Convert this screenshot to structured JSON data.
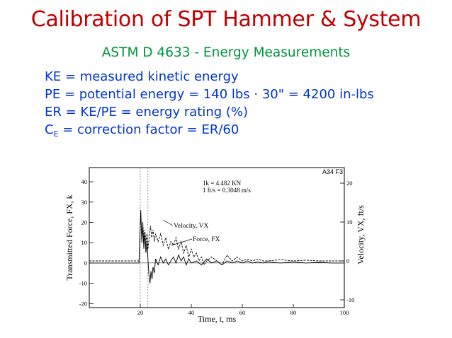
{
  "slide": {
    "title": "Calibration of SPT Hammer & System",
    "subtitle": "ASTM D 4633 - Energy Measurements",
    "definitions": [
      "KE = measured kinetic energy",
      "PE  = potential energy = 140 lbs · 30\" = 4200 in-lbs",
      "ER = KE/PE = energy rating  (%)"
    ],
    "ce": {
      "symbol": "C",
      "subscript": "E",
      "text": " = correction factor = ER/60"
    }
  },
  "chart_data": {
    "type": "line",
    "figure_id": "A34 F3",
    "conversions": [
      "1k = 4.482 KN",
      "1 ft/s = 0.3048 m/s"
    ],
    "xlabel": "Time, t, ms",
    "ylabel_left": "Transmitted Force, FX, k",
    "ylabel_right": "Velocity, VX, ft/s",
    "xlim": [
      0,
      100
    ],
    "ylim_left": [
      -22,
      47
    ],
    "ylim_right": [
      -12,
      24
    ],
    "x_ticks": [
      "20",
      "40",
      "60",
      "80",
      "100"
    ],
    "y_left_ticks": [
      "40",
      "30",
      "20",
      "10",
      "0",
      "-10",
      "-20"
    ],
    "y_right_ticks": [
      "20",
      "10",
      "0",
      "-10"
    ],
    "annotations": [
      "Velocity, VX",
      "Force, FX"
    ],
    "series": [
      {
        "name": "Force, FX",
        "axis": "left",
        "x": [
          0,
          19.5,
          20.2,
          20.6,
          21.0,
          21.4,
          21.8,
          22.2,
          22.6,
          23.0,
          23.4,
          23.8,
          24.2,
          24.6,
          25.0,
          25.5,
          26,
          27,
          28,
          29,
          30,
          31,
          32,
          33,
          34,
          35,
          36,
          37,
          38,
          39,
          40,
          42,
          44,
          46,
          48,
          50,
          52,
          54,
          56,
          58,
          60,
          62,
          64,
          66,
          68,
          70,
          75,
          80,
          85,
          90,
          95,
          100
        ],
        "y": [
          0,
          0,
          26,
          10,
          18,
          7,
          15,
          5,
          10,
          2,
          -6,
          -10,
          -4,
          -8,
          -2,
          -5,
          2,
          -1,
          3,
          0,
          2,
          -1,
          1,
          3,
          0,
          4,
          1,
          3,
          -1,
          2,
          0,
          1,
          -1,
          2,
          0,
          1,
          -1,
          1,
          0,
          1,
          0,
          1,
          0,
          0.5,
          0,
          0.5,
          0,
          0.5,
          0,
          0.3,
          0,
          0
        ]
      },
      {
        "name": "Velocity, VX",
        "axis": "right",
        "x": [
          0,
          19.5,
          20.2,
          20.6,
          21.0,
          21.4,
          21.8,
          22.2,
          22.6,
          23.0,
          23.5,
          24,
          24.5,
          25,
          25.5,
          26,
          27,
          28,
          29,
          30,
          31,
          32,
          33,
          34,
          35,
          36,
          37,
          38,
          39,
          40,
          41,
          42,
          43,
          44,
          45,
          46,
          48,
          50,
          52,
          54,
          56,
          58,
          60,
          62,
          64,
          66,
          68,
          70,
          75,
          80,
          85,
          90,
          95,
          100
        ],
        "y": [
          0,
          0,
          12,
          6,
          10,
          5,
          8,
          4,
          7,
          3,
          6,
          9,
          6,
          8,
          5,
          7,
          5,
          7,
          4,
          6,
          3,
          5,
          4,
          6,
          3,
          5,
          2,
          4,
          1,
          3,
          1,
          2,
          0,
          1,
          -1,
          0,
          1,
          0,
          -1,
          1.5,
          0,
          1,
          0,
          0.5,
          0,
          0.5,
          0,
          0,
          0.3,
          0,
          0.2,
          0,
          0,
          0
        ]
      }
    ]
  }
}
